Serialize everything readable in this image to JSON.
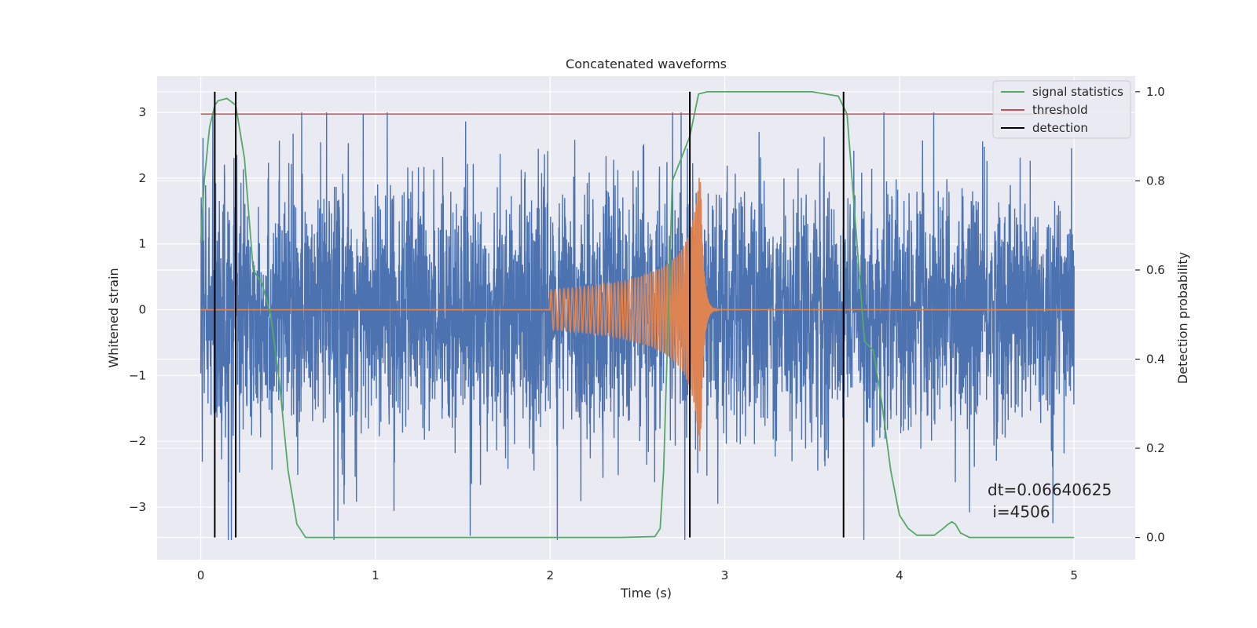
{
  "chart_data": {
    "type": "line",
    "title": "Concatenated waveforms",
    "xlabel": "Time (s)",
    "ylabel": "Whitened strain",
    "y2label": "Detection probability",
    "xlim": [
      -0.25,
      5.35
    ],
    "ylim": [
      -3.8,
      3.55
    ],
    "y2lim": [
      -0.05,
      1.035
    ],
    "grid": true,
    "xticks": [
      0,
      1,
      2,
      3,
      4,
      5
    ],
    "yticks": [
      -3,
      -2,
      -1,
      0,
      1,
      2,
      3
    ],
    "y2ticks": [
      0.0,
      0.2,
      0.4,
      0.6,
      0.8,
      1.0
    ],
    "xtick_labels": [
      "0",
      "1",
      "2",
      "3",
      "4",
      "5"
    ],
    "ytick_labels": [
      "−3",
      "−2",
      "−1",
      "0",
      "1",
      "2",
      "3"
    ],
    "y2tick_labels": [
      "0.0",
      "0.2",
      "0.4",
      "0.6",
      "0.8",
      "1.0"
    ],
    "legend_position": "top-right",
    "colors": {
      "strain": "#4c72b0",
      "template": "#dd8452",
      "statistics": "#55a868",
      "threshold": "#c44e52",
      "detection": "#000000",
      "background": "#eaeaf2",
      "grid": "#ffffff"
    },
    "series": [
      {
        "name": "",
        "axis": "left",
        "description_kind": "whitened-noise",
        "x_range": [
          0,
          5
        ],
        "envelope_y": [
          -3.5,
          3.0
        ]
      },
      {
        "name": "",
        "axis": "left",
        "description_kind": "chirp",
        "start_x": 2.0,
        "merger_x": 2.86,
        "end_x": 3.0,
        "start_amplitude": 0.3,
        "peak_amplitude": 2.2
      },
      {
        "name": "signal statistics",
        "axis": "right",
        "x": [
          0,
          0.02,
          0.05,
          0.08,
          0.1,
          0.15,
          0.2,
          0.25,
          0.28,
          0.3,
          0.35,
          0.4,
          0.45,
          0.5,
          0.55,
          0.6,
          0.8,
          1.0,
          2.0,
          2.4,
          2.6,
          2.63,
          2.65,
          2.7,
          2.75,
          2.8,
          2.85,
          2.9,
          3.0,
          3.5,
          3.65,
          3.7,
          3.8,
          3.85,
          3.9,
          3.95,
          4.0,
          4.05,
          4.1,
          4.2,
          4.25,
          4.28,
          4.3,
          4.32,
          4.35,
          4.4,
          4.6,
          5.0
        ],
        "y": [
          0.66,
          0.8,
          0.92,
          0.97,
          0.98,
          0.985,
          0.97,
          0.85,
          0.7,
          0.6,
          0.57,
          0.5,
          0.35,
          0.15,
          0.03,
          0.0,
          0.0,
          0.0,
          0.0,
          0.0,
          0.002,
          0.02,
          0.15,
          0.8,
          0.85,
          0.9,
          0.995,
          1.0,
          1.0,
          1.0,
          0.99,
          0.95,
          0.44,
          0.42,
          0.3,
          0.15,
          0.05,
          0.02,
          0.005,
          0.005,
          0.02,
          0.03,
          0.035,
          0.03,
          0.01,
          0.0,
          0.0,
          0.0
        ]
      },
      {
        "name": "threshold",
        "axis": "right",
        "x": [
          0,
          5
        ],
        "y": [
          0.95,
          0.95
        ]
      },
      {
        "name": "detection",
        "axis": "right",
        "type": "vlines",
        "x": [
          0.08,
          0.2,
          2.8,
          3.68
        ],
        "ymin": 0.0,
        "ymax": 1.0
      }
    ],
    "legend": [
      "signal statistics",
      "threshold",
      "detection"
    ],
    "annotation": {
      "line1": "dt=0.06640625",
      "line2": " i=4506"
    }
  }
}
